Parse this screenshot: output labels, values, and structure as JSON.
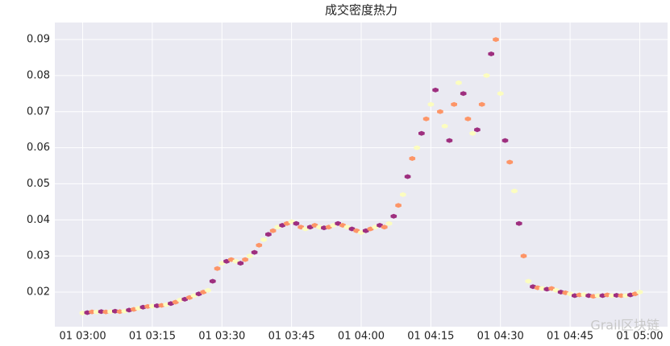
{
  "chart_data": {
    "type": "hexbin",
    "title": "成交密度热力",
    "x": [
      "01 03:00",
      "01 03:01",
      "01 03:02",
      "01 03:03",
      "01 03:04",
      "01 03:05",
      "01 03:06",
      "01 03:07",
      "01 03:08",
      "01 03:09",
      "01 03:10",
      "01 03:11",
      "01 03:12",
      "01 03:13",
      "01 03:14",
      "01 03:15",
      "01 03:16",
      "01 03:17",
      "01 03:18",
      "01 03:19",
      "01 03:20",
      "01 03:21",
      "01 03:22",
      "01 03:23",
      "01 03:24",
      "01 03:25",
      "01 03:26",
      "01 03:27",
      "01 03:28",
      "01 03:29",
      "01 03:30",
      "01 03:31",
      "01 03:32",
      "01 03:33",
      "01 03:34",
      "01 03:35",
      "01 03:36",
      "01 03:37",
      "01 03:38",
      "01 03:39",
      "01 03:40",
      "01 03:41",
      "01 03:42",
      "01 03:43",
      "01 03:44",
      "01 03:45",
      "01 03:46",
      "01 03:47",
      "01 03:48",
      "01 03:49",
      "01 03:50",
      "01 03:51",
      "01 03:52",
      "01 03:53",
      "01 03:54",
      "01 03:55",
      "01 03:56",
      "01 03:57",
      "01 03:58",
      "01 03:59",
      "01 04:00",
      "01 04:01",
      "01 04:02",
      "01 04:03",
      "01 04:04",
      "01 04:05",
      "01 04:06",
      "01 04:07",
      "01 04:08",
      "01 04:09",
      "01 04:10",
      "01 04:11",
      "01 04:12",
      "01 04:13",
      "01 04:14",
      "01 04:15",
      "01 04:16",
      "01 04:17",
      "01 04:18",
      "01 04:19",
      "01 04:20",
      "01 04:21",
      "01 04:22",
      "01 04:23",
      "01 04:24",
      "01 04:25",
      "01 04:26",
      "01 04:27",
      "01 04:28",
      "01 04:29",
      "01 04:30",
      "01 04:31",
      "01 04:32",
      "01 04:33",
      "01 04:34",
      "01 04:35",
      "01 04:36",
      "01 04:37",
      "01 04:38",
      "01 04:39",
      "01 04:40",
      "01 04:41",
      "01 04:42",
      "01 04:43",
      "01 04:44",
      "01 04:45",
      "01 04:46",
      "01 04:47",
      "01 04:48",
      "01 04:49",
      "01 04:50",
      "01 04:51",
      "01 04:52",
      "01 04:53",
      "01 04:54",
      "01 04:55",
      "01 04:56",
      "01 04:57",
      "01 04:58",
      "01 04:59",
      "01 05:00"
    ],
    "values": [
      0.0142,
      0.0143,
      0.0145,
      0.0145,
      0.0146,
      0.0145,
      0.0146,
      0.0147,
      0.0146,
      0.0147,
      0.015,
      0.0152,
      0.0155,
      0.0158,
      0.016,
      0.0161,
      0.0162,
      0.0163,
      0.0165,
      0.0168,
      0.0172,
      0.0178,
      0.018,
      0.0185,
      0.019,
      0.0195,
      0.02,
      0.0205,
      0.023,
      0.0265,
      0.028,
      0.0285,
      0.029,
      0.0285,
      0.028,
      0.029,
      0.03,
      0.031,
      0.033,
      0.0345,
      0.036,
      0.037,
      0.038,
      0.0385,
      0.039,
      0.0395,
      0.039,
      0.038,
      0.0375,
      0.038,
      0.0385,
      0.038,
      0.0378,
      0.038,
      0.0385,
      0.039,
      0.0385,
      0.038,
      0.0375,
      0.037,
      0.0365,
      0.037,
      0.0375,
      0.038,
      0.0385,
      0.038,
      0.039,
      0.041,
      0.044,
      0.047,
      0.052,
      0.057,
      0.06,
      0.064,
      0.068,
      0.072,
      0.076,
      0.07,
      0.066,
      0.062,
      0.072,
      0.078,
      0.075,
      0.068,
      0.064,
      0.065,
      0.072,
      0.08,
      0.086,
      0.09,
      0.075,
      0.062,
      0.056,
      0.048,
      0.039,
      0.03,
      0.023,
      0.0215,
      0.0212,
      0.021,
      0.0208,
      0.021,
      0.0205,
      0.02,
      0.0198,
      0.0195,
      0.019,
      0.0192,
      0.0193,
      0.019,
      0.0188,
      0.019,
      0.019,
      0.0192,
      0.019,
      0.0191,
      0.019,
      0.019,
      0.0192,
      0.0195,
      0.02
    ],
    "colormap": [
      "#fcfdbf",
      "#fec98d",
      "#fd9567",
      "#f1605d",
      "#cd4071",
      "#9e2f7f",
      "#721f81",
      "#1d1147"
    ],
    "xlim": [
      "01 02:54",
      "01 05:06"
    ],
    "xticks": [
      "01 03:00",
      "01 03:15",
      "01 03:30",
      "01 03:45",
      "01 04:00",
      "01 04:15",
      "01 04:30",
      "01 04:45",
      "01 05:00"
    ],
    "ylim": [
      0.0104,
      0.0947
    ],
    "yticks": [
      0.02,
      0.03,
      0.04,
      0.05,
      0.06,
      0.07,
      0.08,
      0.09
    ],
    "grid": true,
    "watermark": "Grail区块链"
  }
}
